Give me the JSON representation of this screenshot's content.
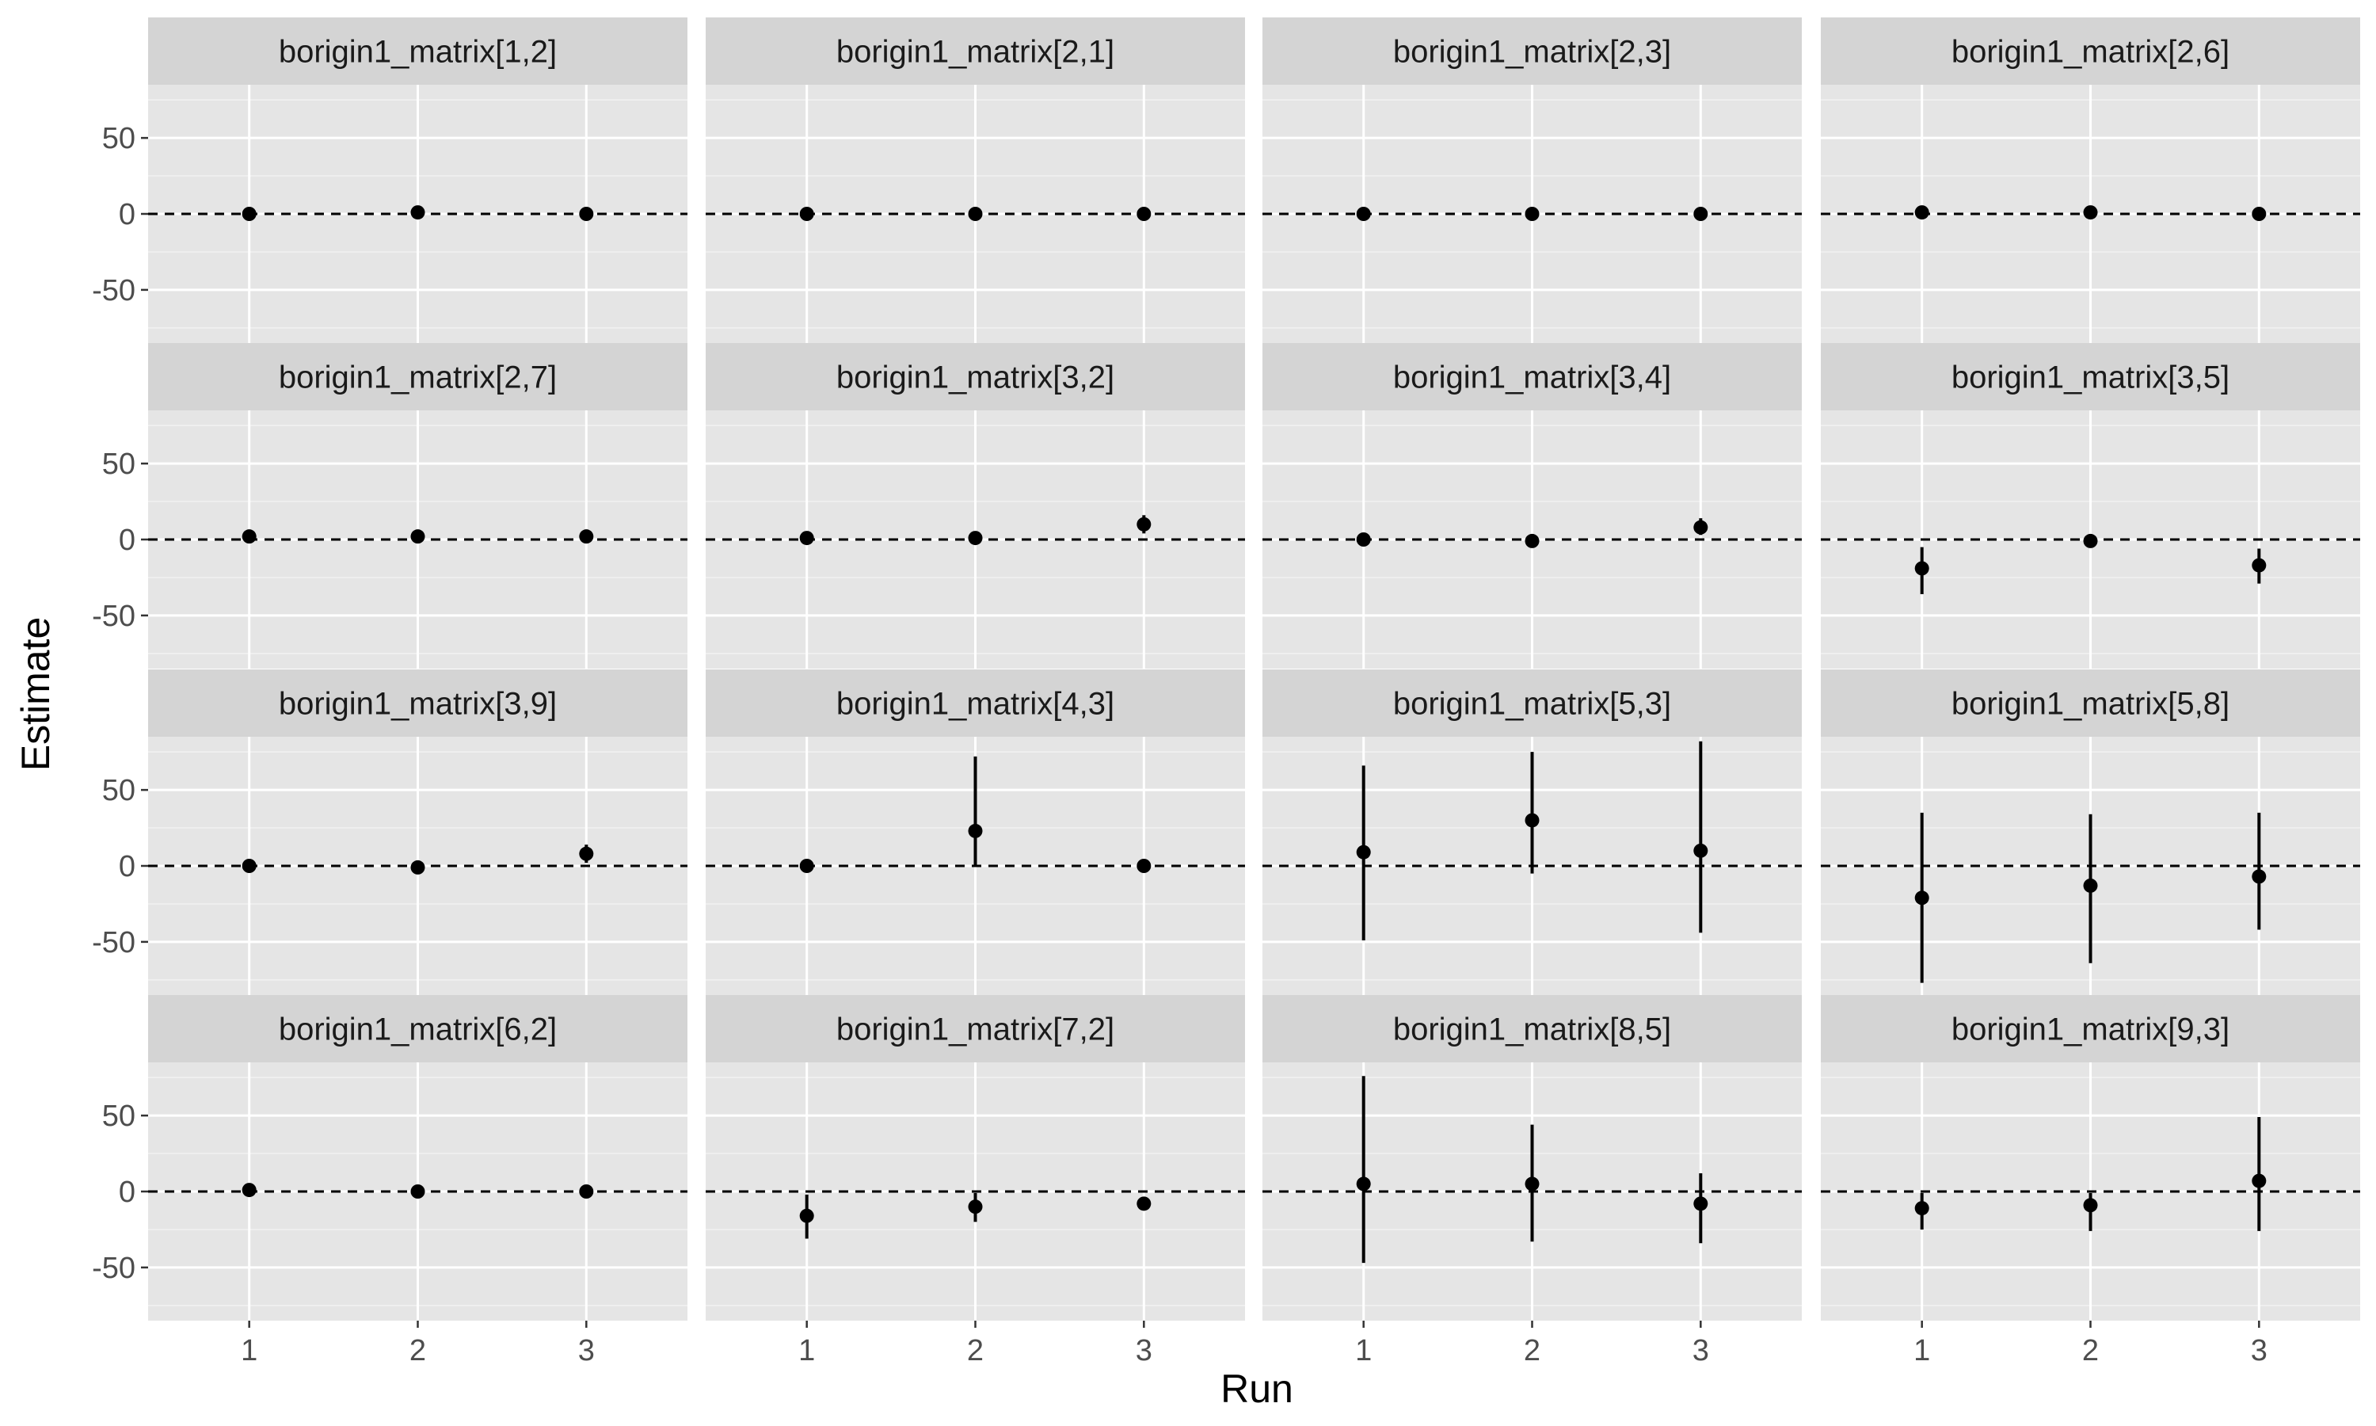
{
  "chart_data": {
    "type": "scatter",
    "xlabel": "Run",
    "ylabel": "Estimate",
    "x_ticks": [
      1,
      2,
      3
    ],
    "y_ticks": [
      -50,
      0,
      50
    ],
    "ylim": [
      -85,
      85
    ],
    "xlim": [
      0.4,
      3.6
    ],
    "reference_line": 0,
    "grid": true,
    "point_color": "#000000",
    "panel_background": "#e5e5e5",
    "strip_background": "#d4d4d4",
    "facets": [
      {
        "label": "borigin1_matrix[1,2]",
        "points": [
          {
            "x": 1,
            "y": 0,
            "lo": -1,
            "hi": 1
          },
          {
            "x": 2,
            "y": 1,
            "lo": 0,
            "hi": 2
          },
          {
            "x": 3,
            "y": 0,
            "lo": -1,
            "hi": 1
          }
        ]
      },
      {
        "label": "borigin1_matrix[2,1]",
        "points": [
          {
            "x": 1,
            "y": 0,
            "lo": -1,
            "hi": 1
          },
          {
            "x": 2,
            "y": 0,
            "lo": -1,
            "hi": 1
          },
          {
            "x": 3,
            "y": 0,
            "lo": -1,
            "hi": 1
          }
        ]
      },
      {
        "label": "borigin1_matrix[2,3]",
        "points": [
          {
            "x": 1,
            "y": 0,
            "lo": -1,
            "hi": 1
          },
          {
            "x": 2,
            "y": 0,
            "lo": -1,
            "hi": 1
          },
          {
            "x": 3,
            "y": 0,
            "lo": -1,
            "hi": 1
          }
        ]
      },
      {
        "label": "borigin1_matrix[2,6]",
        "points": [
          {
            "x": 1,
            "y": 1,
            "lo": 0,
            "hi": 2
          },
          {
            "x": 2,
            "y": 1,
            "lo": 0,
            "hi": 2
          },
          {
            "x": 3,
            "y": 0,
            "lo": -1,
            "hi": 1
          }
        ]
      },
      {
        "label": "borigin1_matrix[2,7]",
        "points": [
          {
            "x": 1,
            "y": 2,
            "lo": 1,
            "hi": 3
          },
          {
            "x": 2,
            "y": 2,
            "lo": 1,
            "hi": 3
          },
          {
            "x": 3,
            "y": 2,
            "lo": 1,
            "hi": 3
          }
        ]
      },
      {
        "label": "borigin1_matrix[3,2]",
        "points": [
          {
            "x": 1,
            "y": 1,
            "lo": 0,
            "hi": 2
          },
          {
            "x": 2,
            "y": 1,
            "lo": 0,
            "hi": 2
          },
          {
            "x": 3,
            "y": 10,
            "lo": 4,
            "hi": 16
          }
        ]
      },
      {
        "label": "borigin1_matrix[3,4]",
        "points": [
          {
            "x": 1,
            "y": 0,
            "lo": -1,
            "hi": 1
          },
          {
            "x": 2,
            "y": -1,
            "lo": -2,
            "hi": 0
          },
          {
            "x": 3,
            "y": 8,
            "lo": 3,
            "hi": 14
          }
        ]
      },
      {
        "label": "borigin1_matrix[3,5]",
        "points": [
          {
            "x": 1,
            "y": -19,
            "lo": -36,
            "hi": -5
          },
          {
            "x": 2,
            "y": -1,
            "lo": -3,
            "hi": 1
          },
          {
            "x": 3,
            "y": -17,
            "lo": -29,
            "hi": -6
          }
        ]
      },
      {
        "label": "borigin1_matrix[3,9]",
        "points": [
          {
            "x": 1,
            "y": 0,
            "lo": -1,
            "hi": 1
          },
          {
            "x": 2,
            "y": -1,
            "lo": -2,
            "hi": 0
          },
          {
            "x": 3,
            "y": 8,
            "lo": 2,
            "hi": 14
          }
        ]
      },
      {
        "label": "borigin1_matrix[4,3]",
        "points": [
          {
            "x": 1,
            "y": 0,
            "lo": -1,
            "hi": 1
          },
          {
            "x": 2,
            "y": 23,
            "lo": 0,
            "hi": 72
          },
          {
            "x": 3,
            "y": 0,
            "lo": -1,
            "hi": 1
          }
        ]
      },
      {
        "label": "borigin1_matrix[5,3]",
        "points": [
          {
            "x": 1,
            "y": 9,
            "lo": -49,
            "hi": 66
          },
          {
            "x": 2,
            "y": 30,
            "lo": -5,
            "hi": 75
          },
          {
            "x": 3,
            "y": 10,
            "lo": -44,
            "hi": 82
          }
        ]
      },
      {
        "label": "borigin1_matrix[5,8]",
        "points": [
          {
            "x": 1,
            "y": -21,
            "lo": -77,
            "hi": 35
          },
          {
            "x": 2,
            "y": -13,
            "lo": -64,
            "hi": 34
          },
          {
            "x": 3,
            "y": -7,
            "lo": -42,
            "hi": 35
          }
        ]
      },
      {
        "label": "borigin1_matrix[6,2]",
        "points": [
          {
            "x": 1,
            "y": 1,
            "lo": 0,
            "hi": 2
          },
          {
            "x": 2,
            "y": 0,
            "lo": -1,
            "hi": 1
          },
          {
            "x": 3,
            "y": 0,
            "lo": -1,
            "hi": 1
          }
        ]
      },
      {
        "label": "borigin1_matrix[7,2]",
        "points": [
          {
            "x": 1,
            "y": -16,
            "lo": -31,
            "hi": -2
          },
          {
            "x": 2,
            "y": -10,
            "lo": -20,
            "hi": -1
          },
          {
            "x": 3,
            "y": -8,
            "lo": -12,
            "hi": -4
          }
        ]
      },
      {
        "label": "borigin1_matrix[8,5]",
        "points": [
          {
            "x": 1,
            "y": 5,
            "lo": -47,
            "hi": 76
          },
          {
            "x": 2,
            "y": 5,
            "lo": -33,
            "hi": 44
          },
          {
            "x": 3,
            "y": -8,
            "lo": -34,
            "hi": 12
          }
        ]
      },
      {
        "label": "borigin1_matrix[9,3]",
        "points": [
          {
            "x": 1,
            "y": -11,
            "lo": -25,
            "hi": -1
          },
          {
            "x": 2,
            "y": -9,
            "lo": -26,
            "hi": -1
          },
          {
            "x": 3,
            "y": 7,
            "lo": -26,
            "hi": 49
          }
        ]
      }
    ]
  }
}
